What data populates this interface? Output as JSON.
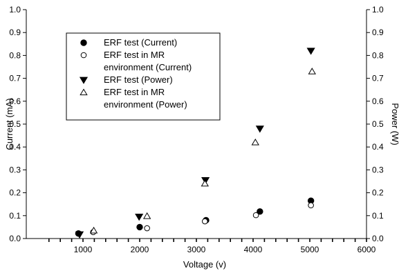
{
  "chart_data": {
    "type": "scatter",
    "xlabel": "Voltage (v)",
    "ylabel": "Current (mA)",
    "y2label": "Power (W)",
    "xlim": [
      0,
      6000
    ],
    "ylim": [
      0,
      1.0
    ],
    "y2lim": [
      0,
      1.0
    ],
    "x_ticks": [
      1000,
      2000,
      3000,
      4000,
      5000,
      6000
    ],
    "y_ticks": [
      0.0,
      0.1,
      0.2,
      0.3,
      0.4,
      0.5,
      0.6,
      0.7,
      0.8,
      0.9,
      1.0
    ],
    "x_tick_labels": [
      "1000",
      "2000",
      "3000",
      "4000",
      "5000",
      "6000"
    ],
    "y_tick_labels": [
      "0.0",
      "0.1",
      "0.2",
      "0.3",
      "0.4",
      "0.5",
      "0.6",
      "0.7",
      "0.8",
      "0.9",
      "1.0"
    ],
    "y2_tick_labels": [
      "0.0",
      "0.1",
      "0.2",
      "0.3",
      "0.4",
      "0.5",
      "0.6",
      "0.7",
      "0.8",
      "0.9",
      "1.0"
    ],
    "grid": false,
    "legend_position": "top-left",
    "legend_lines": [
      [
        "ERF test  (Current)"
      ],
      [
        "ERF test in MR",
        "environment (Current)"
      ],
      [
        "ERF test  (Power)"
      ],
      [
        "ERF test in MR",
        "environment (Power)"
      ]
    ],
    "series": [
      {
        "name": "ERF test  (Current)",
        "marker": "filled-circle",
        "axis": "left",
        "x": [
          920,
          2000,
          3170,
          4120,
          5020
        ],
        "y": [
          0.022,
          0.05,
          0.08,
          0.118,
          0.165
        ]
      },
      {
        "name": "ERF test in MR environment (Current)",
        "marker": "open-circle",
        "axis": "left",
        "x": [
          1180,
          2130,
          3150,
          4050,
          5020
        ],
        "y": [
          0.028,
          0.045,
          0.075,
          0.102,
          0.145
        ]
      },
      {
        "name": "ERF test  (Power)",
        "marker": "filled-triangle-down",
        "axis": "right",
        "x": [
          940,
          1990,
          3160,
          4120,
          5020
        ],
        "y": [
          0.018,
          0.095,
          0.255,
          0.48,
          0.82
        ]
      },
      {
        "name": "ERF test in MR environment (Power)",
        "marker": "open-triangle-up",
        "axis": "right",
        "x": [
          1190,
          2130,
          3150,
          4040,
          5040
        ],
        "y": [
          0.035,
          0.098,
          0.24,
          0.42,
          0.73
        ]
      }
    ]
  }
}
